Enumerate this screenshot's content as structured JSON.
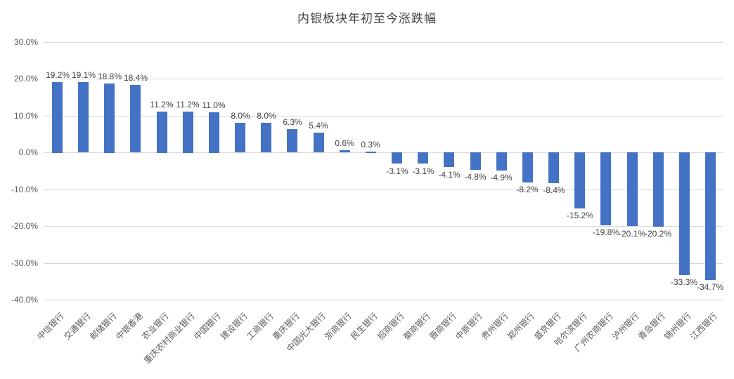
{
  "chart_data": {
    "type": "bar",
    "title": "内银板块年初至今涨跌幅",
    "categories": [
      "中信银行",
      "交通银行",
      "邮储银行",
      "中银香港",
      "农业银行",
      "重庆农村商业银行",
      "中国银行",
      "建设银行",
      "工商银行",
      "重庆银行",
      "中国光大银行",
      "浙商银行",
      "民生银行",
      "招商银行",
      "徽商银行",
      "晋商银行",
      "中原银行",
      "贵州银行",
      "郑州银行",
      "盛京银行",
      "哈尔滨银行",
      "广州农商银行",
      "泸州银行",
      "青岛银行",
      "锦州银行",
      "江西银行"
    ],
    "values": [
      19.2,
      19.1,
      18.8,
      18.4,
      11.2,
      11.2,
      11.0,
      8.0,
      8.0,
      6.3,
      5.4,
      0.6,
      0.3,
      -3.1,
      -3.1,
      -4.1,
      -4.8,
      -4.9,
      -8.2,
      -8.4,
      -15.2,
      -19.8,
      -20.1,
      -20.2,
      -33.3,
      -34.7
    ],
    "data_labels": [
      "19.2%",
      "19.1%",
      "18.8%",
      "18.4%",
      "11.2%",
      "11.2%",
      "11.0%",
      "8.0%",
      "8.0%",
      "6.3%",
      "5.4%",
      "0.6%",
      "0.3%",
      "-3.1%",
      "-3.1%",
      "-4.1%",
      "-4.8%",
      "-4.9%",
      "-8.2%",
      "-8.4%",
      "-15.2%",
      "-19.8%",
      "-20.1%",
      "-20.2%",
      "-33.3%",
      "-34.7%"
    ],
    "xlabel": "",
    "ylabel": "",
    "ylim": [
      -40,
      30
    ],
    "ytick_step": 10,
    "ytick_labels": [
      "30.0%",
      "20.0%",
      "10.0%",
      "0.0%",
      "-10.0%",
      "-20.0%",
      "-30.0%",
      "-40.0%"
    ],
    "grid": true,
    "legend": "none",
    "colors": {
      "bar": "#4472C4",
      "gridline": "#D9D9D9",
      "title": "#404040",
      "data_label": "#404040",
      "axis_label": "#595959",
      "background": "#FFFFFF"
    }
  }
}
